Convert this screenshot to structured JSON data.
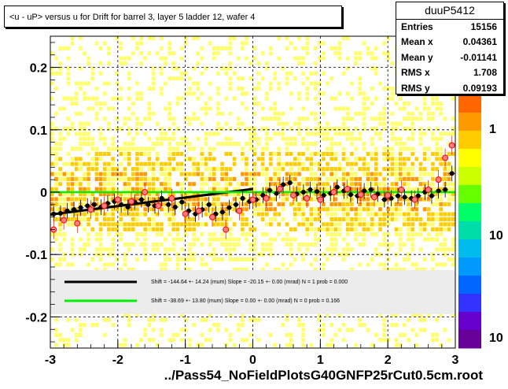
{
  "title": "<u - uP>       versus   u for Drift for barrel 3, layer 5 ladder 12, wafer 4",
  "footer": "../Pass54_NoFieldPlotsG40GNFP25rCut0.5cm.root",
  "stats": {
    "name": "duuP5412",
    "rows": [
      {
        "label": "Entries",
        "value": "15156"
      },
      {
        "label": "Mean x",
        "value": "0.04361"
      },
      {
        "label": "Mean y",
        "value": "-0.01141"
      },
      {
        "label": "RMS x",
        "value": "1.708"
      },
      {
        "label": "RMS y",
        "value": "0.09193"
      }
    ]
  },
  "legend": [
    {
      "color": "#000000",
      "text": "Shift =  -144.64 +- 14.24 (mum) Slope =   -20.15 +- 0.00 (mrad)  N = 1 prob = 0.000"
    },
    {
      "color": "#00ee00",
      "text": "Shift =   -38.69 +- 13.80 (mum) Slope =     0.00 +- 0.00 (mrad)  N = 0 prob = 0.166"
    }
  ],
  "colors": {
    "marker_fill": "#ff7f7f",
    "marker_edge": "#ff0000",
    "profile": "#000000",
    "fit_black": "#000000",
    "fit_green": "#00ee00",
    "legend_bg": "#ececec"
  },
  "chart_data": {
    "type": "heatmap",
    "xlim": [
      -3,
      3
    ],
    "ylim": [
      -0.25,
      0.25
    ],
    "x_ticks": [
      "-3",
      "-2",
      "-1",
      "0",
      "1",
      "2",
      "3"
    ],
    "y_ticks": [
      "-0.2",
      "-0.1",
      "0",
      "0.1",
      "0.2"
    ],
    "z_ticks": [
      "1",
      "10",
      "10"
    ],
    "grid": true,
    "fit_lines": [
      {
        "x": [
          -3.0,
          0.0
        ],
        "y": [
          -0.036,
          0.005
        ]
      },
      {
        "x": [
          -3.0,
          3.0
        ],
        "y": [
          0.0,
          0.0
        ]
      }
    ],
    "profile_x": [
      -2.95,
      -2.85,
      -2.75,
      -2.65,
      -2.55,
      -2.45,
      -2.35,
      -2.25,
      -2.15,
      -2.05,
      -1.95,
      -1.85,
      -1.75,
      -1.65,
      -1.55,
      -1.45,
      -1.35,
      -1.25,
      -1.15,
      -1.05,
      -0.95,
      -0.85,
      -0.75,
      -0.65,
      -0.55,
      -0.45,
      -0.35,
      -0.25,
      -0.15,
      -0.05,
      0.05,
      0.15,
      0.25,
      0.35,
      0.45,
      0.55,
      0.65,
      0.75,
      0.85,
      0.95,
      1.05,
      1.15,
      1.25,
      1.35,
      1.45,
      1.55,
      1.65,
      1.75,
      1.85,
      1.95,
      2.05,
      2.15,
      2.25,
      2.35,
      2.45,
      2.55,
      2.65,
      2.75,
      2.85,
      2.95
    ],
    "profile_y": [
      -0.035,
      -0.034,
      -0.03,
      -0.028,
      -0.025,
      -0.022,
      -0.02,
      -0.024,
      -0.018,
      -0.015,
      -0.02,
      -0.024,
      -0.016,
      -0.012,
      -0.02,
      -0.022,
      -0.01,
      -0.02,
      -0.024,
      -0.016,
      -0.03,
      -0.035,
      -0.028,
      -0.02,
      -0.035,
      -0.032,
      -0.025,
      -0.02,
      -0.01,
      -0.015,
      -0.012,
      -0.005,
      0.003,
      -0.002,
      0.012,
      0.015,
      -0.003,
      0.0,
      0.004,
      0.001,
      -0.005,
      -0.002,
      0.008,
      0.002,
      -0.004,
      -0.006,
      0.002,
      0.004,
      -0.003,
      -0.012,
      -0.01,
      -0.006,
      -0.008,
      -0.01,
      -0.006,
      0.0,
      -0.006,
      0.002,
      0.004,
      0.03
    ],
    "marker_x": [
      -2.95,
      -2.8,
      -2.6,
      -2.4,
      -2.2,
      -2.0,
      -1.8,
      -1.6,
      -1.4,
      -1.2,
      -1.0,
      -0.8,
      -0.6,
      -0.4,
      -0.2,
      0.0,
      0.2,
      0.4,
      0.6,
      0.8,
      1.0,
      1.2,
      1.4,
      1.6,
      1.8,
      2.0,
      2.2,
      2.4,
      2.6,
      2.75,
      2.85,
      2.95
    ],
    "marker_y": [
      -0.06,
      -0.045,
      -0.05,
      -0.028,
      -0.022,
      -0.012,
      -0.015,
      0.0,
      -0.022,
      -0.01,
      -0.035,
      -0.03,
      -0.04,
      -0.06,
      -0.03,
      -0.012,
      -0.01,
      0.005,
      -0.005,
      -0.01,
      -0.012,
      0.0,
      0.005,
      -0.004,
      -0.008,
      -0.005,
      0.004,
      -0.012,
      0.004,
      0.02,
      0.055,
      0.075
    ]
  }
}
